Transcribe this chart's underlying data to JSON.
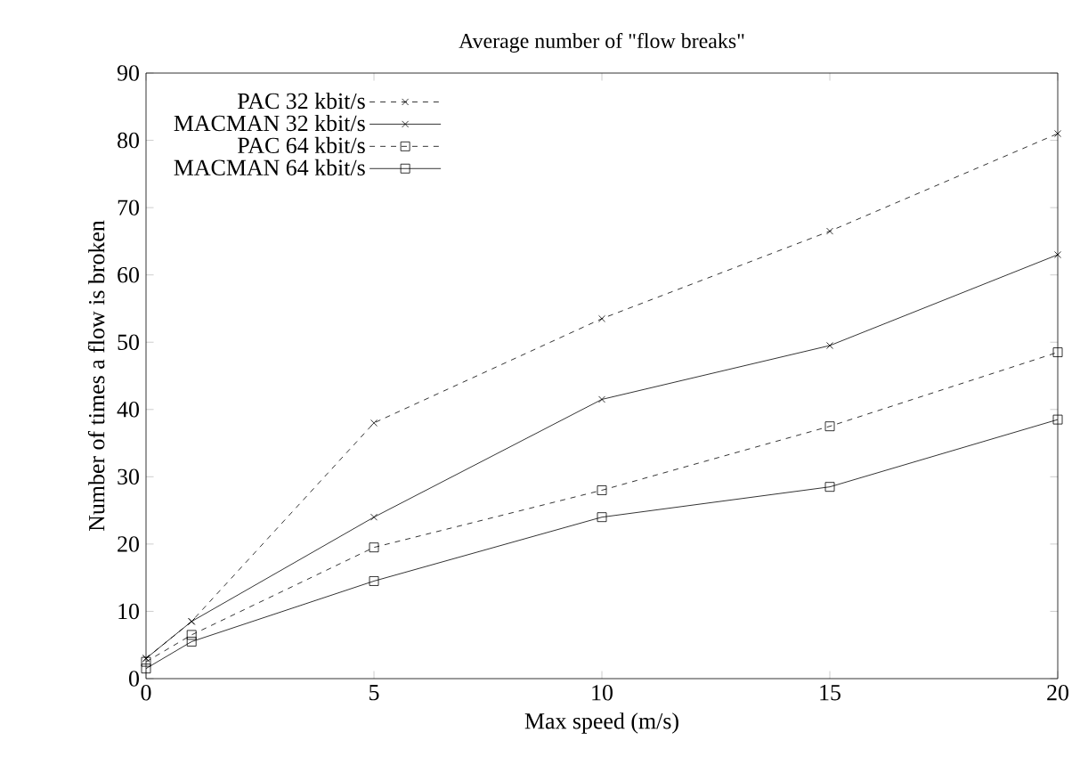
{
  "chart_data": {
    "type": "line",
    "title": "Average number of \"flow breaks\"",
    "xlabel": "Max speed (m/s)",
    "ylabel": "Number of times a flow is broken",
    "x": [
      0,
      1,
      5,
      10,
      15,
      20
    ],
    "series": [
      {
        "name": "PAC 32 kbit/s",
        "color": "#000000",
        "line_style": "dashed",
        "marker": "cross",
        "values": [
          3,
          8.5,
          38,
          53.5,
          66.5,
          81
        ]
      },
      {
        "name": "MACMAN 32 kbit/s",
        "color": "#000000",
        "line_style": "solid",
        "marker": "cross",
        "values": [
          3,
          8.5,
          24,
          41.5,
          49.5,
          63
        ]
      },
      {
        "name": "PAC 64 kbit/s",
        "color": "#000000",
        "line_style": "dashed",
        "marker": "square",
        "values": [
          2.5,
          6.5,
          19.5,
          28,
          37.5,
          48.5
        ]
      },
      {
        "name": "MACMAN 64 kbit/s",
        "color": "#000000",
        "line_style": "solid",
        "marker": "square",
        "values": [
          1.5,
          5.5,
          14.5,
          24,
          28.5,
          38.5
        ]
      }
    ],
    "xlim": [
      0,
      20
    ],
    "xticks": [
      0,
      5,
      10,
      15,
      20
    ],
    "ylim": [
      0,
      90
    ],
    "yticks": [
      0,
      10,
      20,
      30,
      40,
      50,
      60,
      70,
      80,
      90
    ],
    "legend": "top left",
    "grid": false
  }
}
